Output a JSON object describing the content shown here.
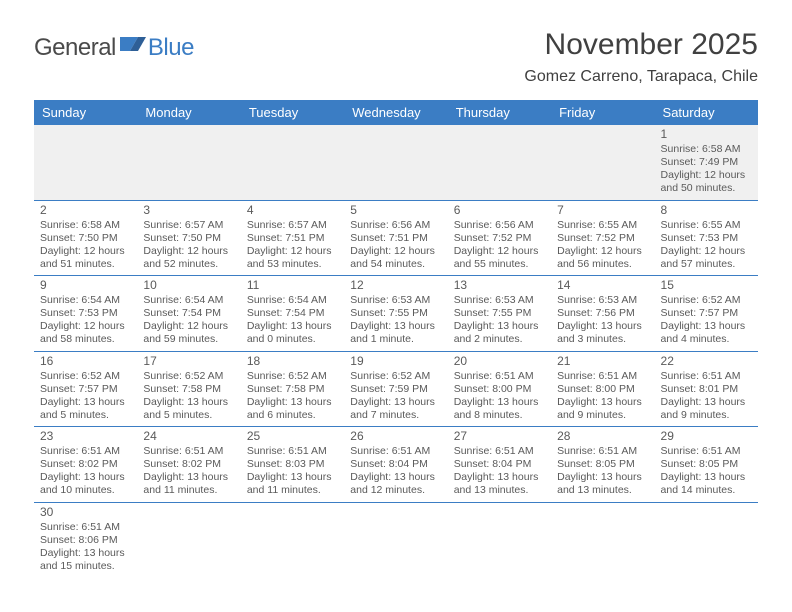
{
  "brand": {
    "name1": "General",
    "name2": "Blue"
  },
  "title": "November 2025",
  "location": "Gomez Carreno, Tarapaca, Chile",
  "colors": {
    "header_bg": "#3b7dc4",
    "header_fg": "#ffffff",
    "row_border": "#3b7dc4",
    "firstweek_bg": "#f0f0f0",
    "text": "#5a5a5a",
    "page_bg": "#ffffff"
  },
  "weekdays": [
    "Sunday",
    "Monday",
    "Tuesday",
    "Wednesday",
    "Thursday",
    "Friday",
    "Saturday"
  ],
  "weeks": [
    [
      null,
      null,
      null,
      null,
      null,
      null,
      {
        "n": "1",
        "sr": "Sunrise: 6:58 AM",
        "ss": "Sunset: 7:49 PM",
        "dl": "Daylight: 12 hours and 50 minutes."
      }
    ],
    [
      {
        "n": "2",
        "sr": "Sunrise: 6:58 AM",
        "ss": "Sunset: 7:50 PM",
        "dl": "Daylight: 12 hours and 51 minutes."
      },
      {
        "n": "3",
        "sr": "Sunrise: 6:57 AM",
        "ss": "Sunset: 7:50 PM",
        "dl": "Daylight: 12 hours and 52 minutes."
      },
      {
        "n": "4",
        "sr": "Sunrise: 6:57 AM",
        "ss": "Sunset: 7:51 PM",
        "dl": "Daylight: 12 hours and 53 minutes."
      },
      {
        "n": "5",
        "sr": "Sunrise: 6:56 AM",
        "ss": "Sunset: 7:51 PM",
        "dl": "Daylight: 12 hours and 54 minutes."
      },
      {
        "n": "6",
        "sr": "Sunrise: 6:56 AM",
        "ss": "Sunset: 7:52 PM",
        "dl": "Daylight: 12 hours and 55 minutes."
      },
      {
        "n": "7",
        "sr": "Sunrise: 6:55 AM",
        "ss": "Sunset: 7:52 PM",
        "dl": "Daylight: 12 hours and 56 minutes."
      },
      {
        "n": "8",
        "sr": "Sunrise: 6:55 AM",
        "ss": "Sunset: 7:53 PM",
        "dl": "Daylight: 12 hours and 57 minutes."
      }
    ],
    [
      {
        "n": "9",
        "sr": "Sunrise: 6:54 AM",
        "ss": "Sunset: 7:53 PM",
        "dl": "Daylight: 12 hours and 58 minutes."
      },
      {
        "n": "10",
        "sr": "Sunrise: 6:54 AM",
        "ss": "Sunset: 7:54 PM",
        "dl": "Daylight: 12 hours and 59 minutes."
      },
      {
        "n": "11",
        "sr": "Sunrise: 6:54 AM",
        "ss": "Sunset: 7:54 PM",
        "dl": "Daylight: 13 hours and 0 minutes."
      },
      {
        "n": "12",
        "sr": "Sunrise: 6:53 AM",
        "ss": "Sunset: 7:55 PM",
        "dl": "Daylight: 13 hours and 1 minute."
      },
      {
        "n": "13",
        "sr": "Sunrise: 6:53 AM",
        "ss": "Sunset: 7:55 PM",
        "dl": "Daylight: 13 hours and 2 minutes."
      },
      {
        "n": "14",
        "sr": "Sunrise: 6:53 AM",
        "ss": "Sunset: 7:56 PM",
        "dl": "Daylight: 13 hours and 3 minutes."
      },
      {
        "n": "15",
        "sr": "Sunrise: 6:52 AM",
        "ss": "Sunset: 7:57 PM",
        "dl": "Daylight: 13 hours and 4 minutes."
      }
    ],
    [
      {
        "n": "16",
        "sr": "Sunrise: 6:52 AM",
        "ss": "Sunset: 7:57 PM",
        "dl": "Daylight: 13 hours and 5 minutes."
      },
      {
        "n": "17",
        "sr": "Sunrise: 6:52 AM",
        "ss": "Sunset: 7:58 PM",
        "dl": "Daylight: 13 hours and 5 minutes."
      },
      {
        "n": "18",
        "sr": "Sunrise: 6:52 AM",
        "ss": "Sunset: 7:58 PM",
        "dl": "Daylight: 13 hours and 6 minutes."
      },
      {
        "n": "19",
        "sr": "Sunrise: 6:52 AM",
        "ss": "Sunset: 7:59 PM",
        "dl": "Daylight: 13 hours and 7 minutes."
      },
      {
        "n": "20",
        "sr": "Sunrise: 6:51 AM",
        "ss": "Sunset: 8:00 PM",
        "dl": "Daylight: 13 hours and 8 minutes."
      },
      {
        "n": "21",
        "sr": "Sunrise: 6:51 AM",
        "ss": "Sunset: 8:00 PM",
        "dl": "Daylight: 13 hours and 9 minutes."
      },
      {
        "n": "22",
        "sr": "Sunrise: 6:51 AM",
        "ss": "Sunset: 8:01 PM",
        "dl": "Daylight: 13 hours and 9 minutes."
      }
    ],
    [
      {
        "n": "23",
        "sr": "Sunrise: 6:51 AM",
        "ss": "Sunset: 8:02 PM",
        "dl": "Daylight: 13 hours and 10 minutes."
      },
      {
        "n": "24",
        "sr": "Sunrise: 6:51 AM",
        "ss": "Sunset: 8:02 PM",
        "dl": "Daylight: 13 hours and 11 minutes."
      },
      {
        "n": "25",
        "sr": "Sunrise: 6:51 AM",
        "ss": "Sunset: 8:03 PM",
        "dl": "Daylight: 13 hours and 11 minutes."
      },
      {
        "n": "26",
        "sr": "Sunrise: 6:51 AM",
        "ss": "Sunset: 8:04 PM",
        "dl": "Daylight: 13 hours and 12 minutes."
      },
      {
        "n": "27",
        "sr": "Sunrise: 6:51 AM",
        "ss": "Sunset: 8:04 PM",
        "dl": "Daylight: 13 hours and 13 minutes."
      },
      {
        "n": "28",
        "sr": "Sunrise: 6:51 AM",
        "ss": "Sunset: 8:05 PM",
        "dl": "Daylight: 13 hours and 13 minutes."
      },
      {
        "n": "29",
        "sr": "Sunrise: 6:51 AM",
        "ss": "Sunset: 8:05 PM",
        "dl": "Daylight: 13 hours and 14 minutes."
      }
    ],
    [
      {
        "n": "30",
        "sr": "Sunrise: 6:51 AM",
        "ss": "Sunset: 8:06 PM",
        "dl": "Daylight: 13 hours and 15 minutes."
      },
      null,
      null,
      null,
      null,
      null,
      null
    ]
  ]
}
